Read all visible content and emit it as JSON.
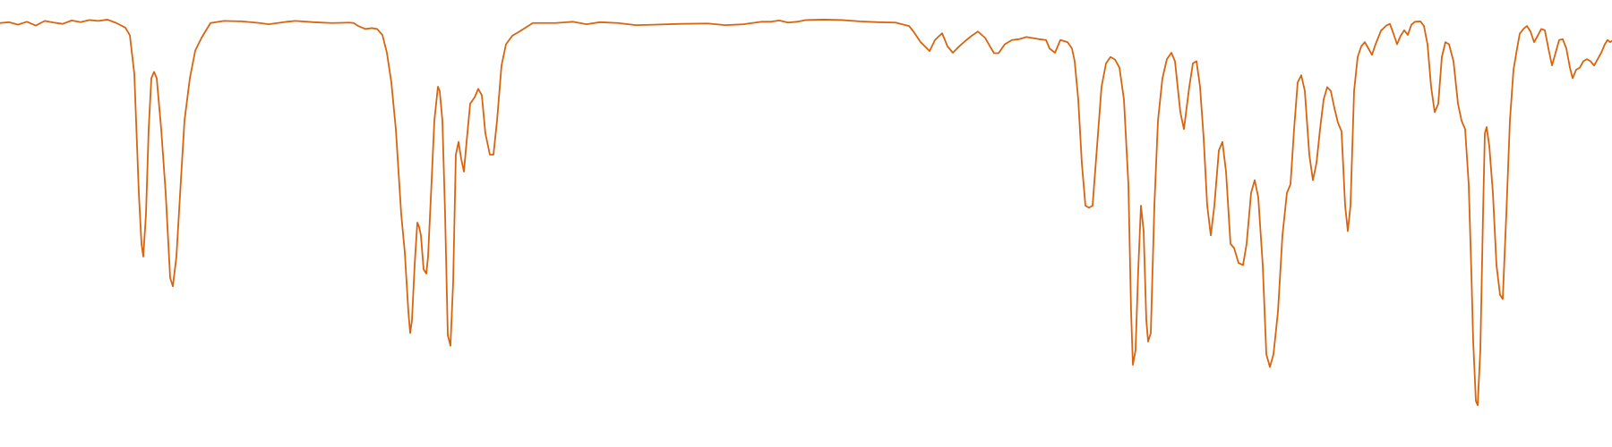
{
  "chart_data": {
    "type": "line",
    "title": "",
    "xlabel": "",
    "ylabel": "",
    "x_axis_visible": false,
    "y_axis_visible": false,
    "grid": false,
    "legend": "none",
    "xlim": [
      0,
      1800
    ],
    "ylim": [
      0,
      100
    ],
    "series": [
      {
        "color": "#d9640e",
        "points": [
          [
            0,
            95.0
          ],
          [
            10,
            95.2
          ],
          [
            20,
            94.6
          ],
          [
            30,
            95.3
          ],
          [
            40,
            94.4
          ],
          [
            50,
            95.5
          ],
          [
            60,
            95.1
          ],
          [
            70,
            94.8
          ],
          [
            80,
            95.6
          ],
          [
            90,
            95.2
          ],
          [
            100,
            95.7
          ],
          [
            110,
            95.5
          ],
          [
            120,
            95.8
          ],
          [
            130,
            95.0
          ],
          [
            140,
            93.9
          ],
          [
            145,
            92.1
          ],
          [
            150,
            83.0
          ],
          [
            155,
            55.0
          ],
          [
            158,
            43.0
          ],
          [
            160,
            40.0
          ],
          [
            163,
            50.0
          ],
          [
            166,
            70.0
          ],
          [
            169,
            82.0
          ],
          [
            172,
            83.5
          ],
          [
            175,
            82.0
          ],
          [
            180,
            70.0
          ],
          [
            185,
            55.0
          ],
          [
            190,
            35.0
          ],
          [
            193,
            33.0
          ],
          [
            197,
            40.0
          ],
          [
            202,
            58.0
          ],
          [
            206,
            72.0
          ],
          [
            212,
            82.0
          ],
          [
            218,
            88.5
          ],
          [
            225,
            91.5
          ],
          [
            235,
            95.0
          ],
          [
            250,
            95.5
          ],
          [
            270,
            95.4
          ],
          [
            290,
            95.0
          ],
          [
            300,
            94.7
          ],
          [
            320,
            95.3
          ],
          [
            330,
            95.5
          ],
          [
            350,
            95.2
          ],
          [
            370,
            95.0
          ],
          [
            390,
            95.1
          ],
          [
            395,
            95.0
          ],
          [
            400,
            94.3
          ],
          [
            408,
            93.6
          ],
          [
            415,
            93.8
          ],
          [
            421,
            93.6
          ],
          [
            427,
            92.2
          ],
          [
            432,
            88.0
          ],
          [
            437,
            81.0
          ],
          [
            442,
            70.0
          ],
          [
            448,
            50.0
          ],
          [
            452,
            41.0
          ],
          [
            456,
            27.0
          ],
          [
            458,
            22.0
          ],
          [
            460,
            25.0
          ],
          [
            463,
            38.0
          ],
          [
            466,
            48.0
          ],
          [
            468,
            47.0
          ],
          [
            470,
            45.0
          ],
          [
            473,
            37.0
          ],
          [
            476,
            36.0
          ],
          [
            478,
            40.0
          ],
          [
            482,
            58.0
          ],
          [
            485,
            72.0
          ],
          [
            489,
            80.0
          ],
          [
            491,
            79.0
          ],
          [
            494,
            72.0
          ],
          [
            497,
            50.0
          ],
          [
            500,
            21.5
          ],
          [
            503,
            19.0
          ],
          [
            506,
            34.0
          ],
          [
            509,
            64.0
          ],
          [
            512,
            67.0
          ],
          [
            515,
            63.0
          ],
          [
            518,
            60.0
          ],
          [
            521,
            67.0
          ],
          [
            525,
            76.0
          ],
          [
            530,
            77.5
          ],
          [
            534,
            79.5
          ],
          [
            538,
            78.0
          ],
          [
            542,
            69.0
          ],
          [
            547,
            64.0
          ],
          [
            551,
            64.0
          ],
          [
            555,
            72.0
          ],
          [
            560,
            85.0
          ],
          [
            565,
            90.0
          ],
          [
            572,
            92.0
          ],
          [
            580,
            93.0
          ],
          [
            595,
            95.0
          ],
          [
            620,
            95.0
          ],
          [
            640,
            95.3
          ],
          [
            655,
            94.7
          ],
          [
            670,
            95.2
          ],
          [
            690,
            95.0
          ],
          [
            710,
            94.5
          ],
          [
            730,
            94.6
          ],
          [
            760,
            94.8
          ],
          [
            790,
            94.9
          ],
          [
            810,
            94.5
          ],
          [
            830,
            94.7
          ],
          [
            850,
            95.3
          ],
          [
            860,
            95.3
          ],
          [
            870,
            95.6
          ],
          [
            880,
            95.1
          ],
          [
            890,
            95.3
          ],
          [
            900,
            95.7
          ],
          [
            920,
            95.8
          ],
          [
            940,
            95.7
          ],
          [
            960,
            95.4
          ],
          [
            980,
            95.2
          ],
          [
            1000,
            95.1
          ],
          [
            1015,
            94.3
          ],
          [
            1020,
            93.0
          ],
          [
            1028,
            90.5
          ],
          [
            1038,
            88.4
          ],
          [
            1044,
            91.0
          ],
          [
            1052,
            92.6
          ],
          [
            1058,
            89.5
          ],
          [
            1064,
            88.0
          ],
          [
            1070,
            89.3
          ],
          [
            1078,
            90.8
          ],
          [
            1085,
            92.0
          ],
          [
            1092,
            93.0
          ],
          [
            1100,
            91.5
          ],
          [
            1106,
            89.3
          ],
          [
            1110,
            87.9
          ],
          [
            1115,
            87.9
          ],
          [
            1122,
            90.0
          ],
          [
            1130,
            91.0
          ],
          [
            1138,
            91.2
          ],
          [
            1146,
            91.7
          ],
          [
            1152,
            91.5
          ],
          [
            1160,
            91.2
          ],
          [
            1168,
            91.0
          ],
          [
            1172,
            89.0
          ],
          [
            1178,
            88.0
          ],
          [
            1184,
            91.0
          ],
          [
            1192,
            90.5
          ],
          [
            1197,
            89.0
          ],
          [
            1200,
            86.0
          ],
          [
            1204,
            77.0
          ],
          [
            1208,
            62.0
          ],
          [
            1212,
            52.0
          ],
          [
            1216,
            51.5
          ],
          [
            1220,
            52.0
          ],
          [
            1225,
            66.0
          ],
          [
            1230,
            80.0
          ],
          [
            1235,
            85.5
          ],
          [
            1240,
            87.0
          ],
          [
            1245,
            86.4
          ],
          [
            1250,
            84.5
          ],
          [
            1255,
            77.0
          ],
          [
            1260,
            57.0
          ],
          [
            1263,
            27.0
          ],
          [
            1265,
            14.5
          ],
          [
            1268,
            18.0
          ],
          [
            1271,
            37.0
          ],
          [
            1274,
            52.0
          ],
          [
            1277,
            46.0
          ],
          [
            1280,
            25.0
          ],
          [
            1282,
            20.0
          ],
          [
            1285,
            22.0
          ],
          [
            1289,
            52.0
          ],
          [
            1293,
            72.0
          ],
          [
            1298,
            82.0
          ],
          [
            1303,
            86.5
          ],
          [
            1308,
            88.0
          ],
          [
            1312,
            86.0
          ],
          [
            1318,
            74.0
          ],
          [
            1322,
            70.0
          ],
          [
            1328,
            80.0
          ],
          [
            1332,
            85.5
          ],
          [
            1336,
            86.0
          ],
          [
            1340,
            80.0
          ],
          [
            1344,
            68.0
          ],
          [
            1348,
            52.0
          ],
          [
            1352,
            45.0
          ],
          [
            1356,
            52.0
          ],
          [
            1361,
            65.0
          ],
          [
            1365,
            67.0
          ],
          [
            1369,
            60.0
          ],
          [
            1374,
            43.0
          ],
          [
            1378,
            42.0
          ],
          [
            1383,
            38.5
          ],
          [
            1388,
            38.0
          ],
          [
            1392,
            43.0
          ],
          [
            1397,
            55.0
          ],
          [
            1401,
            58.0
          ],
          [
            1405,
            54.0
          ],
          [
            1410,
            38.0
          ],
          [
            1414,
            17.0
          ],
          [
            1418,
            14.0
          ],
          [
            1422,
            17.0
          ],
          [
            1427,
            27.0
          ],
          [
            1432,
            45.0
          ],
          [
            1437,
            55.0
          ],
          [
            1441,
            57.0
          ],
          [
            1445,
            70.0
          ],
          [
            1449,
            81.0
          ],
          [
            1453,
            82.7
          ],
          [
            1457,
            79.0
          ],
          [
            1462,
            64.0
          ],
          [
            1466,
            58.0
          ],
          [
            1470,
            62.0
          ],
          [
            1474,
            70.0
          ],
          [
            1478,
            77.0
          ],
          [
            1482,
            79.9
          ],
          [
            1486,
            79.0
          ],
          [
            1490,
            75.0
          ],
          [
            1494,
            71.5
          ],
          [
            1498,
            69.5
          ],
          [
            1502,
            52.0
          ],
          [
            1505,
            46.0
          ],
          [
            1508,
            52.0
          ],
          [
            1512,
            79.0
          ],
          [
            1516,
            87.0
          ],
          [
            1520,
            89.5
          ],
          [
            1524,
            90.5
          ],
          [
            1528,
            89.0
          ],
          [
            1532,
            87.5
          ],
          [
            1536,
            90.0
          ],
          [
            1542,
            93.2
          ],
          [
            1548,
            94.4
          ],
          [
            1552,
            94.8
          ],
          [
            1556,
            92.5
          ],
          [
            1560,
            90.0
          ],
          [
            1564,
            92.0
          ],
          [
            1568,
            93.3
          ],
          [
            1572,
            92.2
          ],
          [
            1576,
            94.6
          ],
          [
            1580,
            95.3
          ],
          [
            1586,
            95.4
          ],
          [
            1590,
            94.3
          ],
          [
            1594,
            90.0
          ],
          [
            1598,
            80.0
          ],
          [
            1602,
            74.0
          ],
          [
            1606,
            76.0
          ],
          [
            1610,
            87.0
          ],
          [
            1614,
            90.5
          ],
          [
            1618,
            90.0
          ],
          [
            1623,
            86.0
          ],
          [
            1628,
            76.0
          ],
          [
            1632,
            72.0
          ],
          [
            1636,
            70.0
          ],
          [
            1640,
            57.0
          ],
          [
            1643,
            36.0
          ],
          [
            1645,
            20.0
          ],
          [
            1648,
            6.0
          ],
          [
            1650,
            5.0
          ],
          [
            1653,
            18.0
          ],
          [
            1656,
            50.0
          ],
          [
            1658,
            69.0
          ],
          [
            1660,
            70.5
          ],
          [
            1663,
            66.0
          ],
          [
            1667,
            55.0
          ],
          [
            1671,
            38.0
          ],
          [
            1675,
            31.0
          ],
          [
            1678,
            30.0
          ],
          [
            1682,
            50.0
          ],
          [
            1686,
            72.0
          ],
          [
            1690,
            84.0
          ],
          [
            1694,
            89.0
          ],
          [
            1697,
            92.5
          ],
          [
            1701,
            93.6
          ],
          [
            1705,
            94.3
          ],
          [
            1709,
            93.0
          ],
          [
            1713,
            90.5
          ],
          [
            1717,
            92.0
          ],
          [
            1721,
            93.6
          ],
          [
            1725,
            93.3
          ],
          [
            1729,
            89.0
          ],
          [
            1733,
            85.0
          ],
          [
            1737,
            88.0
          ],
          [
            1741,
            91.0
          ],
          [
            1745,
            91.2
          ],
          [
            1749,
            89.0
          ],
          [
            1753,
            84.5
          ],
          [
            1756,
            82.0
          ],
          [
            1760,
            84.0
          ],
          [
            1764,
            84.5
          ],
          [
            1768,
            86.0
          ],
          [
            1772,
            86.5
          ],
          [
            1776,
            86.0
          ],
          [
            1780,
            85.0
          ],
          [
            1784,
            86.5
          ],
          [
            1788,
            88.0
          ],
          [
            1792,
            90.0
          ],
          [
            1795,
            91.0
          ],
          [
            1798,
            90.5
          ],
          [
            1800,
            90.8
          ]
        ]
      }
    ]
  }
}
